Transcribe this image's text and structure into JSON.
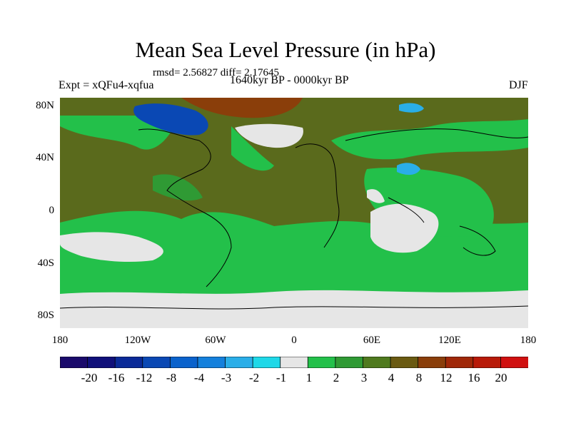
{
  "title": "Mean Sea Level Pressure (in hPa)",
  "stats": "rmsd= 2.56827 diff= 2.17645",
  "period": "1640kyr BP - 0000kyr BP",
  "experiment": "Expt = xQFu4-xqfua",
  "season": "DJF",
  "lat_labels": [
    "80N",
    "40N",
    "0",
    "40S",
    "80S"
  ],
  "lon_labels": [
    "180",
    "120W",
    "60W",
    "0",
    "60E",
    "120E",
    "180"
  ],
  "colorbar": {
    "labels": [
      "-20",
      "-16",
      "-12",
      "-8",
      "-4",
      "-3",
      "-2",
      "-1",
      "1",
      "2",
      "3",
      "4",
      "8",
      "12",
      "16",
      "20"
    ],
    "colors": [
      "#1a0a6b",
      "#10107a",
      "#0a2a98",
      "#0a48b4",
      "#0a62cc",
      "#1480dc",
      "#2aaee8",
      "#1ed8e8",
      "#e6e6e6",
      "#23c04a",
      "#2f9a34",
      "#4f7a1e",
      "#6a5a12",
      "#8a3e0a",
      "#a02808",
      "#b81a08",
      "#d01010"
    ]
  },
  "map_colors": {
    "base": "#5a6a1c",
    "green": "#23c04a",
    "dark_green": "#2f9a34",
    "neutral": "#e6e6e6",
    "brown": "#8a3e0a",
    "blue": "#0a48b4",
    "cyan": "#2aaee8"
  }
}
